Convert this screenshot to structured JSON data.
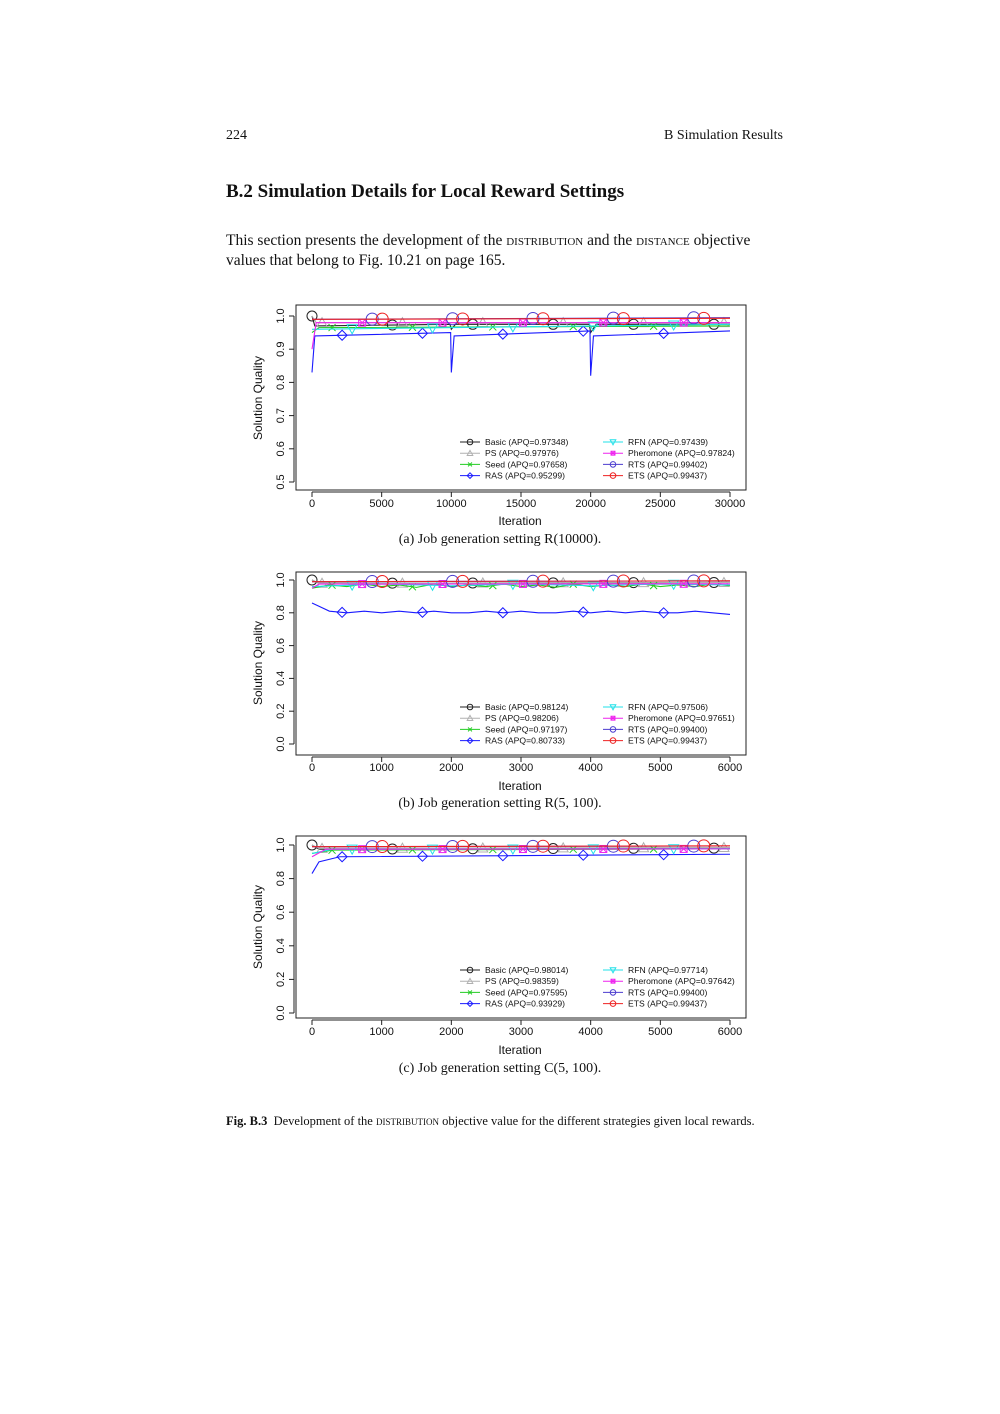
{
  "header": {
    "page_number": "224",
    "running_title": "B  Simulation Results"
  },
  "section": {
    "heading": "B.2  Simulation Details for Local Reward Settings",
    "para_1": "This section presents the development of the ",
    "term_1": "distribution",
    "para_2": " and the ",
    "term_2": "distance",
    "para_3": " objective values that belong to Fig. 10.21 on page 165."
  },
  "figure": {
    "label": "Fig. B.3",
    "caption_1": "Development of the ",
    "caption_term": "distribution",
    "caption_2": " objective value for the different strategies given local rewards."
  },
  "colors": {
    "Basic": "#222222",
    "PS": "#b0b0b0",
    "Seed": "#22cc22",
    "RAS": "#1a1aff",
    "RFN": "#22e0e8",
    "Pheromone": "#ee22ee",
    "RTS": "#4b3ccf",
    "ETS": "#ee2222"
  },
  "chart_data": [
    {
      "type": "line",
      "caption": "(a)  Job generation setting R(10000).",
      "xlabel": "Iteration",
      "ylabel": "Solution Quality",
      "xlim": [
        0,
        30000
      ],
      "ylim": [
        0.5,
        1.0
      ],
      "xticks": [
        0,
        5000,
        10000,
        15000,
        20000,
        25000,
        30000
      ],
      "yticks": [
        "0.5",
        "0.6",
        "0.7",
        "0.8",
        "0.9",
        "1.0"
      ],
      "legend": "bottom-right",
      "series": [
        {
          "name": "Basic",
          "label": "Basic (APQ=0.97348)",
          "marker": "circle",
          "values": [
            [
              0,
              1.0
            ],
            [
              200,
              0.97
            ],
            [
              9900,
              0.975
            ],
            [
              10000,
              0.96
            ],
            [
              10300,
              0.975
            ],
            [
              19900,
              0.975
            ],
            [
              20000,
              0.95
            ],
            [
              20400,
              0.975
            ],
            [
              30000,
              0.975
            ]
          ]
        },
        {
          "name": "PS",
          "label": "PS (APQ=0.97976)",
          "marker": "triangle",
          "values": [
            [
              0,
              1.0
            ],
            [
              300,
              0.98
            ],
            [
              30000,
              0.98
            ]
          ]
        },
        {
          "name": "Seed",
          "label": "Seed (APQ=0.97658)",
          "marker": "x",
          "values": [
            [
              0,
              0.95
            ],
            [
              500,
              0.965
            ],
            [
              30000,
              0.97
            ]
          ]
        },
        {
          "name": "RAS",
          "label": "RAS (APQ=0.95299)",
          "marker": "diamond",
          "values": [
            [
              0,
              0.83
            ],
            [
              200,
              0.94
            ],
            [
              9950,
              0.95
            ],
            [
              10000,
              0.83
            ],
            [
              10200,
              0.94
            ],
            [
              19950,
              0.955
            ],
            [
              20000,
              0.82
            ],
            [
              20200,
              0.94
            ],
            [
              30000,
              0.955
            ]
          ]
        },
        {
          "name": "RFN",
          "label": "RFN (APQ=0.97439)",
          "marker": "triangle-down",
          "values": [
            [
              0,
              0.96
            ],
            [
              30000,
              0.975
            ]
          ]
        },
        {
          "name": "Pheromone",
          "label": "Pheromone (APQ=0.97824)",
          "marker": "square-x",
          "values": [
            [
              0,
              0.9
            ],
            [
              300,
              0.98
            ],
            [
              30000,
              0.98
            ]
          ]
        },
        {
          "name": "RTS",
          "label": "RTS (APQ=0.99402)",
          "marker": "circle",
          "values": [
            [
              0,
              0.99
            ],
            [
              30000,
              0.995
            ]
          ]
        },
        {
          "name": "ETS",
          "label": "ETS (APQ=0.99437)",
          "marker": "circle",
          "values": [
            [
              0,
              0.99
            ],
            [
              30000,
              0.993
            ]
          ]
        }
      ]
    },
    {
      "type": "line",
      "caption": "(b)  Job generation setting R(5, 100).",
      "xlabel": "Iteration",
      "ylabel": "Solution Quality",
      "xlim": [
        0,
        6000
      ],
      "ylim": [
        0.0,
        1.0
      ],
      "xticks": [
        0,
        1000,
        2000,
        3000,
        4000,
        5000,
        6000
      ],
      "yticks": [
        "0.0",
        "0.2",
        "0.4",
        "0.6",
        "0.8",
        "1.0"
      ],
      "legend": "bottom-right",
      "series": [
        {
          "name": "Basic",
          "label": "Basic (APQ=0.98124)",
          "marker": "circle",
          "values": [
            [
              0,
              1.0
            ],
            [
              100,
              0.98
            ],
            [
              6000,
              0.985
            ]
          ]
        },
        {
          "name": "PS",
          "label": "PS (APQ=0.98206)",
          "marker": "triangle",
          "values": [
            [
              0,
              1.0
            ],
            [
              100,
              0.98
            ],
            [
              6000,
              0.985
            ]
          ]
        },
        {
          "name": "Seed",
          "label": "Seed (APQ=0.97197)",
          "marker": "x",
          "values": [
            [
              0,
              0.95
            ],
            [
              250,
              0.97
            ],
            [
              500,
              0.96
            ],
            [
              750,
              0.975
            ],
            [
              1000,
              0.96
            ],
            [
              1250,
              0.97
            ],
            [
              1500,
              0.955
            ],
            [
              1750,
              0.975
            ],
            [
              2000,
              0.96
            ],
            [
              2250,
              0.97
            ],
            [
              2500,
              0.96
            ],
            [
              2750,
              0.975
            ],
            [
              3000,
              0.96
            ],
            [
              3250,
              0.97
            ],
            [
              3500,
              0.955
            ],
            [
              3750,
              0.975
            ],
            [
              4000,
              0.96
            ],
            [
              4250,
              0.97
            ],
            [
              4500,
              0.96
            ],
            [
              4750,
              0.975
            ],
            [
              5000,
              0.96
            ],
            [
              5250,
              0.97
            ],
            [
              5500,
              0.96
            ],
            [
              5750,
              0.975
            ],
            [
              6000,
              0.965
            ]
          ]
        },
        {
          "name": "RAS",
          "label": "RAS (APQ=0.80733)",
          "marker": "diamond",
          "values": [
            [
              0,
              0.86
            ],
            [
              100,
              0.84
            ],
            [
              250,
              0.81
            ],
            [
              500,
              0.8
            ],
            [
              750,
              0.81
            ],
            [
              1000,
              0.8
            ],
            [
              1250,
              0.81
            ],
            [
              1500,
              0.8
            ],
            [
              1750,
              0.81
            ],
            [
              2000,
              0.8
            ],
            [
              2250,
              0.8
            ],
            [
              2500,
              0.81
            ],
            [
              2750,
              0.8
            ],
            [
              3000,
              0.81
            ],
            [
              3250,
              0.8
            ],
            [
              3500,
              0.8
            ],
            [
              3750,
              0.81
            ],
            [
              4000,
              0.8
            ],
            [
              4250,
              0.81
            ],
            [
              4500,
              0.8
            ],
            [
              4750,
              0.81
            ],
            [
              5000,
              0.8
            ],
            [
              5250,
              0.8
            ],
            [
              5500,
              0.81
            ],
            [
              5750,
              0.8
            ],
            [
              6000,
              0.79
            ]
          ]
        },
        {
          "name": "RFN",
          "label": "RFN (APQ=0.97506)",
          "marker": "triangle-down",
          "values": [
            [
              0,
              0.96
            ],
            [
              1000,
              0.975
            ],
            [
              2000,
              0.965
            ],
            [
              3000,
              0.975
            ],
            [
              4000,
              0.965
            ],
            [
              5000,
              0.975
            ],
            [
              6000,
              0.97
            ]
          ]
        },
        {
          "name": "Pheromone",
          "label": "Pheromone (APQ=0.97651)",
          "marker": "square-x",
          "values": [
            [
              0,
              0.95
            ],
            [
              100,
              0.975
            ],
            [
              6000,
              0.977
            ]
          ]
        },
        {
          "name": "RTS",
          "label": "RTS (APQ=0.99400)",
          "marker": "circle",
          "values": [
            [
              0,
              0.99
            ],
            [
              6000,
              0.994
            ]
          ]
        },
        {
          "name": "ETS",
          "label": "ETS (APQ=0.99437)",
          "marker": "circle",
          "values": [
            [
              0,
              0.99
            ],
            [
              6000,
              0.995
            ]
          ]
        }
      ]
    },
    {
      "type": "line",
      "caption": "(c)  Job generation setting C(5, 100).",
      "xlabel": "Iteration",
      "ylabel": "Solution Quality",
      "xlim": [
        0,
        6000
      ],
      "ylim": [
        0.0,
        1.0
      ],
      "xticks": [
        0,
        1000,
        2000,
        3000,
        4000,
        5000,
        6000
      ],
      "yticks": [
        "0.0",
        "0.2",
        "0.4",
        "0.6",
        "0.8",
        "1.0"
      ],
      "legend": "bottom-right",
      "series": [
        {
          "name": "Basic",
          "label": "Basic (APQ=0.98014)",
          "marker": "circle",
          "values": [
            [
              0,
              1.0
            ],
            [
              100,
              0.975
            ],
            [
              6000,
              0.982
            ]
          ]
        },
        {
          "name": "PS",
          "label": "PS (APQ=0.98359)",
          "marker": "triangle",
          "values": [
            [
              0,
              1.0
            ],
            [
              100,
              0.98
            ],
            [
              6000,
              0.985
            ]
          ]
        },
        {
          "name": "Seed",
          "label": "Seed (APQ=0.97595)",
          "marker": "x",
          "values": [
            [
              0,
              0.95
            ],
            [
              300,
              0.97
            ],
            [
              6000,
              0.977
            ]
          ]
        },
        {
          "name": "RAS",
          "label": "RAS (APQ=0.93929)",
          "marker": "diamond",
          "values": [
            [
              0,
              0.83
            ],
            [
              100,
              0.9
            ],
            [
              400,
              0.93
            ],
            [
              6000,
              0.945
            ]
          ]
        },
        {
          "name": "RFN",
          "label": "RFN (APQ=0.97714)",
          "marker": "triangle-down",
          "values": [
            [
              0,
              0.95
            ],
            [
              300,
              0.975
            ],
            [
              6000,
              0.978
            ]
          ]
        },
        {
          "name": "Pheromone",
          "label": "Pheromone (APQ=0.97642)",
          "marker": "square-x",
          "values": [
            [
              0,
              0.93
            ],
            [
              200,
              0.975
            ],
            [
              6000,
              0.977
            ]
          ]
        },
        {
          "name": "RTS",
          "label": "RTS (APQ=0.99400)",
          "marker": "circle",
          "values": [
            [
              0,
              0.99
            ],
            [
              6000,
              0.994
            ]
          ]
        },
        {
          "name": "ETS",
          "label": "ETS (APQ=0.99437)",
          "marker": "circle",
          "values": [
            [
              0,
              0.99
            ],
            [
              6000,
              0.995
            ]
          ]
        }
      ]
    }
  ]
}
